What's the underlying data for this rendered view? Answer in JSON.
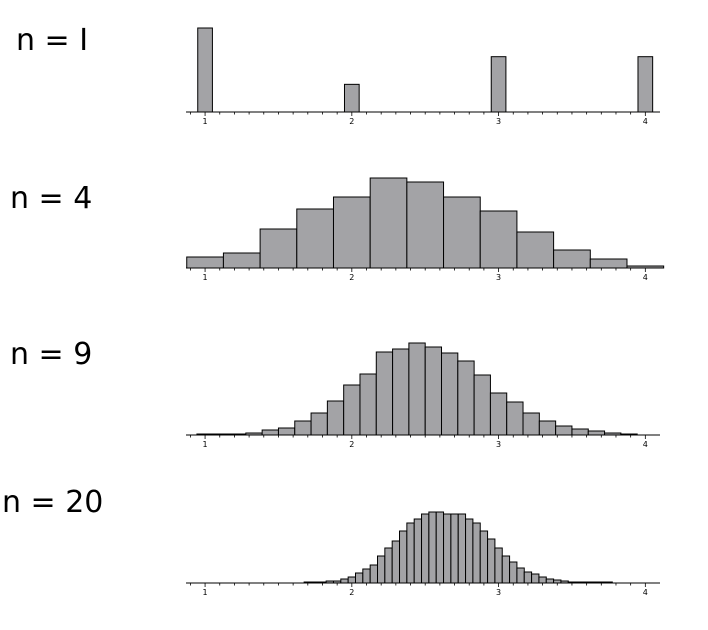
{
  "chart_data": [
    {
      "type": "bar",
      "panel_label": "n = I",
      "xlim": [
        0.87,
        4.1
      ],
      "bin_width": 0.1,
      "bin_centers": [
        1.0,
        2.0,
        3.0,
        4.0
      ],
      "values": [
        82,
        27,
        54,
        54
      ],
      "ymax": 82,
      "xticks": [
        "1",
        "2",
        "3",
        "4"
      ]
    },
    {
      "type": "bar",
      "panel_label": "n = 4",
      "xlim": [
        0.87,
        4.1
      ],
      "bin_width": 0.25,
      "bin_centers": [
        1.0,
        1.25,
        1.5,
        1.75,
        2.0,
        2.25,
        2.5,
        2.75,
        3.0,
        3.25,
        3.5,
        3.75,
        4.0
      ],
      "values": [
        11,
        15,
        39,
        59,
        71,
        90,
        86,
        71,
        57,
        36,
        18,
        9,
        2
      ],
      "ymax": 90,
      "xticks": [
        "1",
        "2",
        "3",
        "4"
      ]
    },
    {
      "type": "bar",
      "panel_label": "n = 9",
      "xlim": [
        0.87,
        4.1
      ],
      "bin_width": 0.1111,
      "bin_centers": [
        1.0,
        1.1111,
        1.2222,
        1.3333,
        1.4444,
        1.5556,
        1.6667,
        1.7778,
        1.8889,
        2.0,
        2.1111,
        2.2222,
        2.3333,
        2.4444,
        2.5556,
        2.6667,
        2.7778,
        2.8889,
        3.0,
        3.1111,
        3.2222,
        3.3333,
        3.4444,
        3.5556,
        3.6667,
        3.7778,
        3.8889,
        4.0
      ],
      "values": [
        1,
        1,
        1,
        2,
        5,
        7,
        14,
        22,
        34,
        50,
        61,
        83,
        86,
        92,
        88,
        82,
        74,
        60,
        42,
        33,
        22,
        14,
        9,
        6,
        4,
        2,
        1,
        0
      ],
      "ymax": 92,
      "xticks": [
        "1",
        "2",
        "3",
        "4"
      ]
    },
    {
      "type": "bar",
      "panel_label": "n = 20",
      "xlim": [
        0.87,
        4.1
      ],
      "bin_width": 0.05,
      "bin_centers": [
        1.0,
        1.05,
        1.1,
        1.15,
        1.2,
        1.25,
        1.3,
        1.35,
        1.4,
        1.45,
        1.5,
        1.55,
        1.6,
        1.65,
        1.7,
        1.75,
        1.8,
        1.85,
        1.9,
        1.95,
        2.0,
        2.05,
        2.1,
        2.15,
        2.2,
        2.25,
        2.3,
        2.35,
        2.4,
        2.45,
        2.5,
        2.55,
        2.6,
        2.65,
        2.7,
        2.75,
        2.8,
        2.85,
        2.9,
        2.95,
        3.0,
        3.05,
        3.1,
        3.15,
        3.2,
        3.25,
        3.3,
        3.35,
        3.4,
        3.45,
        3.5,
        3.55,
        3.6,
        3.65,
        3.7,
        3.75,
        3.8,
        3.85,
        3.9,
        3.95,
        4.0
      ],
      "values": [
        0,
        0,
        0,
        0,
        0,
        0,
        0,
        0,
        0,
        0,
        0,
        0,
        0,
        0,
        1,
        1,
        1,
        2,
        2,
        4,
        6,
        10,
        14,
        18,
        27,
        35,
        42,
        52,
        60,
        64,
        69,
        71,
        71,
        69,
        69,
        69,
        64,
        60,
        52,
        44,
        35,
        27,
        21,
        15,
        11,
        9,
        6,
        4,
        3,
        2,
        1,
        1,
        1,
        1,
        1,
        1,
        0,
        0,
        0,
        0,
        0
      ],
      "ymax": 71,
      "xticks": [
        "1",
        "2",
        "3",
        "4"
      ]
    }
  ]
}
